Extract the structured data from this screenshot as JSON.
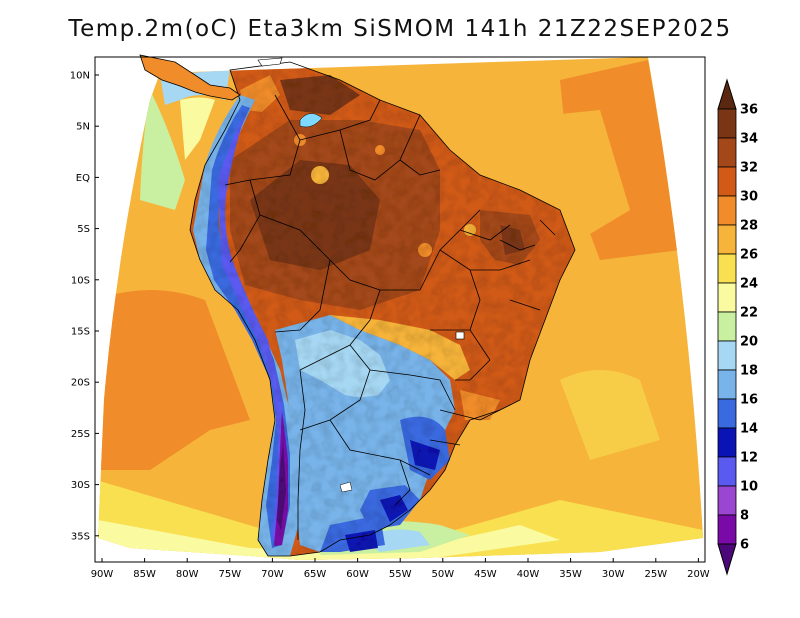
{
  "title": "Temp.2m(oC) Eta3km SiSMOM 141h 21Z22SEP2025",
  "map": {
    "variable": "2 m air temperature",
    "units": "oC",
    "region": "South America",
    "lat_labels": [
      "10N",
      "5N",
      "EQ",
      "5S",
      "10S",
      "15S",
      "20S",
      "25S",
      "30S",
      "35S"
    ],
    "lon_labels": [
      "90W",
      "85W",
      "80W",
      "75W",
      "70W",
      "65W",
      "60W",
      "55W",
      "50W",
      "45W",
      "40W",
      "35W",
      "30W",
      "25W",
      "20W"
    ]
  },
  "colorbar": {
    "labels": [
      "36",
      "34",
      "32",
      "30",
      "28",
      "26",
      "24",
      "22",
      "20",
      "18",
      "16",
      "14",
      "12",
      "10",
      "8",
      "6"
    ],
    "colors": {
      "above_36": "#5a2810",
      "34_36": "#7a3614",
      "32_34": "#a4481a",
      "30_32": "#d05a16",
      "28_30": "#f08c2a",
      "26_28": "#f6b43a",
      "24_26": "#f8e050",
      "22_24": "#fafaa0",
      "20_22": "#c8f0a0",
      "18_20": "#a6d8f4",
      "16_18": "#78b4ea",
      "14_16": "#3a6ae0",
      "12_14": "#0a14b4",
      "10_12": "#5a5af0",
      "8_10": "#9a46d0",
      "6_8": "#7a0aa8",
      "below_6": "#4c0878"
    }
  }
}
